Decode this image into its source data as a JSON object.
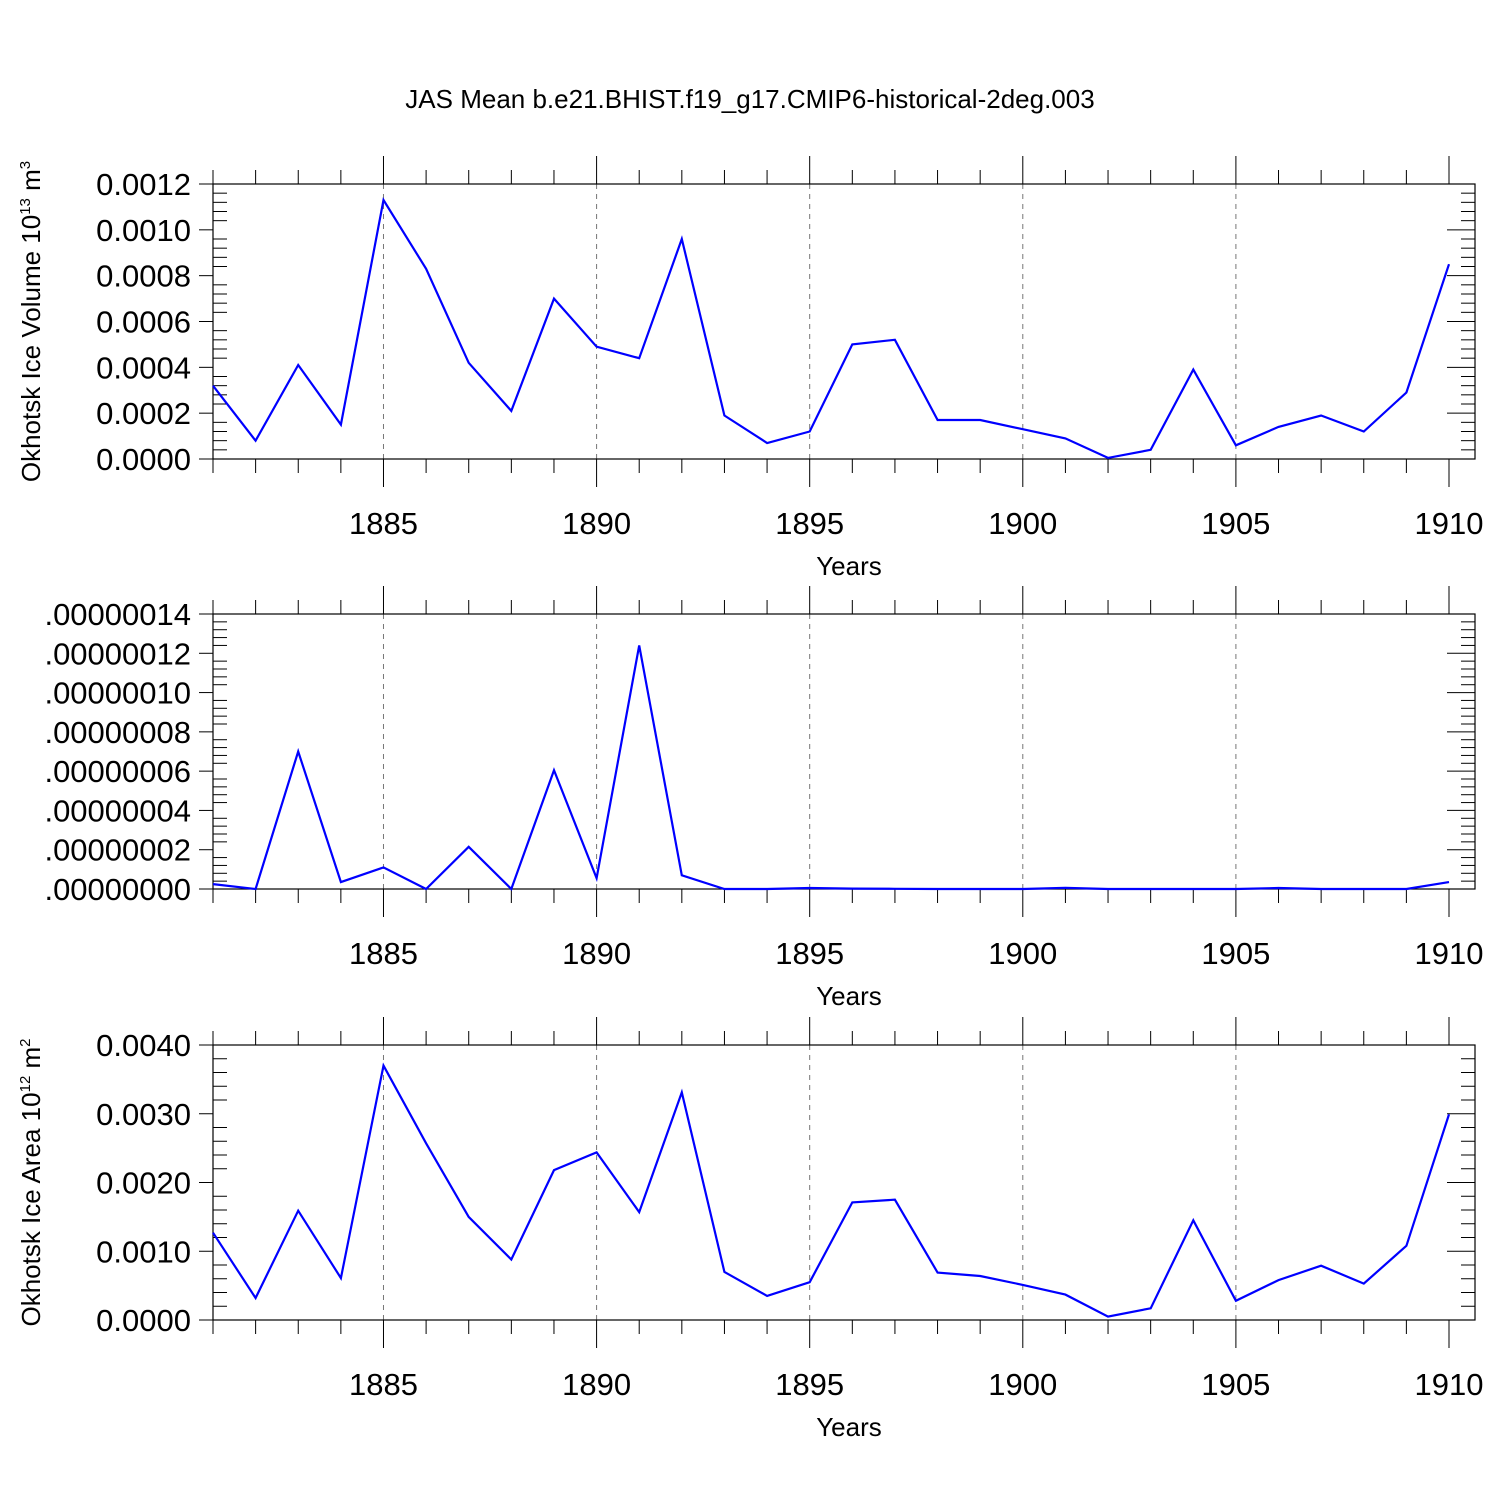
{
  "chart_data": [
    {
      "type": "line",
      "title": "JAS Mean b.e21.BHIST.f19_g17.CMIP6-historical-2deg.003",
      "ylabel": {
        "main": "Okhotsk Ice Volume 10",
        "sup": "13",
        "mid": " m",
        "sup2": "3"
      },
      "xlabel": "Years",
      "xlim": [
        1881,
        1910
      ],
      "ylim": [
        0,
        0.0012
      ],
      "xticks": [
        "1885",
        "1890",
        "1895",
        "1900",
        "1905",
        "1910"
      ],
      "yticks": [
        "0.0000",
        "0.0002",
        "0.0004",
        "0.0006",
        "0.0008",
        "0.0010",
        "0.0012"
      ],
      "line_color": "#0000ff",
      "grid": "vertical dashed at major x ticks",
      "series": [
        {
          "x": [
            1881,
            1882,
            1883,
            1884,
            1885,
            1886,
            1887,
            1888,
            1889,
            1890,
            1891,
            1892,
            1893,
            1894,
            1895,
            1896,
            1897,
            1898,
            1899,
            1900,
            1901,
            1902,
            1903,
            1904,
            1905,
            1906,
            1907,
            1908,
            1909,
            1910
          ],
          "values": [
            0.00032,
            8e-05,
            0.00041,
            0.00015,
            0.00113,
            0.00083,
            0.00042,
            0.00021,
            0.0007,
            0.00049,
            0.00044,
            0.00096,
            0.00019,
            7e-05,
            0.00012,
            0.0005,
            0.00052,
            0.00017,
            0.00017,
            0.00013,
            9e-05,
            5e-06,
            4e-05,
            0.00039,
            6e-05,
            0.00014,
            0.00019,
            0.00012,
            0.00029,
            0.00085
          ]
        }
      ]
    },
    {
      "type": "line",
      "xlabel": "Years",
      "xlim": [
        1881,
        1910
      ],
      "ylim": [
        0,
        1.4e-07
      ],
      "xticks": [
        "1885",
        "1890",
        "1895",
        "1900",
        "1905",
        "1910"
      ],
      "yticks": [
        ".00000000",
        ".00000002",
        ".00000004",
        ".00000006",
        ".00000008",
        ".00000010",
        ".00000012",
        ".00000014"
      ],
      "line_color": "#0000ff",
      "grid": "vertical dashed at major x ticks",
      "series": [
        {
          "x": [
            1881,
            1882,
            1883,
            1884,
            1885,
            1886,
            1887,
            1888,
            1889,
            1890,
            1891,
            1892,
            1893,
            1894,
            1895,
            1896,
            1897,
            1898,
            1899,
            1900,
            1901,
            1902,
            1903,
            1904,
            1905,
            1906,
            1907,
            1908,
            1909,
            1910
          ],
          "values": [
            2.5e-09,
            0.0,
            7e-08,
            3.5e-09,
            1.1e-08,
            0.0,
            2.15e-08,
            0.0,
            6.05e-08,
            5.5e-09,
            1.24e-07,
            7e-09,
            0.0,
            0.0,
            5e-10,
            2e-10,
            1e-10,
            0.0,
            0.0,
            0.0,
            6e-10,
            0.0,
            0.0,
            0.0,
            0.0,
            5e-10,
            0.0,
            0.0,
            0.0,
            3.5e-09
          ]
        }
      ]
    },
    {
      "type": "line",
      "ylabel": {
        "main": "Okhotsk Ice Area 10",
        "sup": "12",
        "mid": " m",
        "sup2": "2"
      },
      "xlabel": "Years",
      "xlim": [
        1881,
        1910
      ],
      "ylim": [
        0,
        0.004
      ],
      "xticks": [
        "1885",
        "1890",
        "1895",
        "1900",
        "1905",
        "1910"
      ],
      "yticks": [
        "0.0000",
        "0.0010",
        "0.0020",
        "0.0030",
        "0.0040"
      ],
      "line_color": "#0000ff",
      "grid": "vertical dashed at major x ticks",
      "series": [
        {
          "x": [
            1881,
            1882,
            1883,
            1884,
            1885,
            1886,
            1887,
            1888,
            1889,
            1890,
            1891,
            1892,
            1893,
            1894,
            1895,
            1896,
            1897,
            1898,
            1899,
            1900,
            1901,
            1902,
            1903,
            1904,
            1905,
            1906,
            1907,
            1908,
            1909,
            1910
          ],
          "values": [
            0.00127,
            0.00032,
            0.00159,
            0.00061,
            0.0037,
            0.00257,
            0.0015,
            0.00088,
            0.00218,
            0.00244,
            0.00157,
            0.00331,
            0.0007,
            0.00035,
            0.00055,
            0.00171,
            0.00175,
            0.00069,
            0.00064,
            0.00051,
            0.00037,
            5e-05,
            0.00017,
            0.00145,
            0.00028,
            0.00058,
            0.00079,
            0.00053,
            0.00108,
            0.00299
          ]
        }
      ]
    }
  ]
}
